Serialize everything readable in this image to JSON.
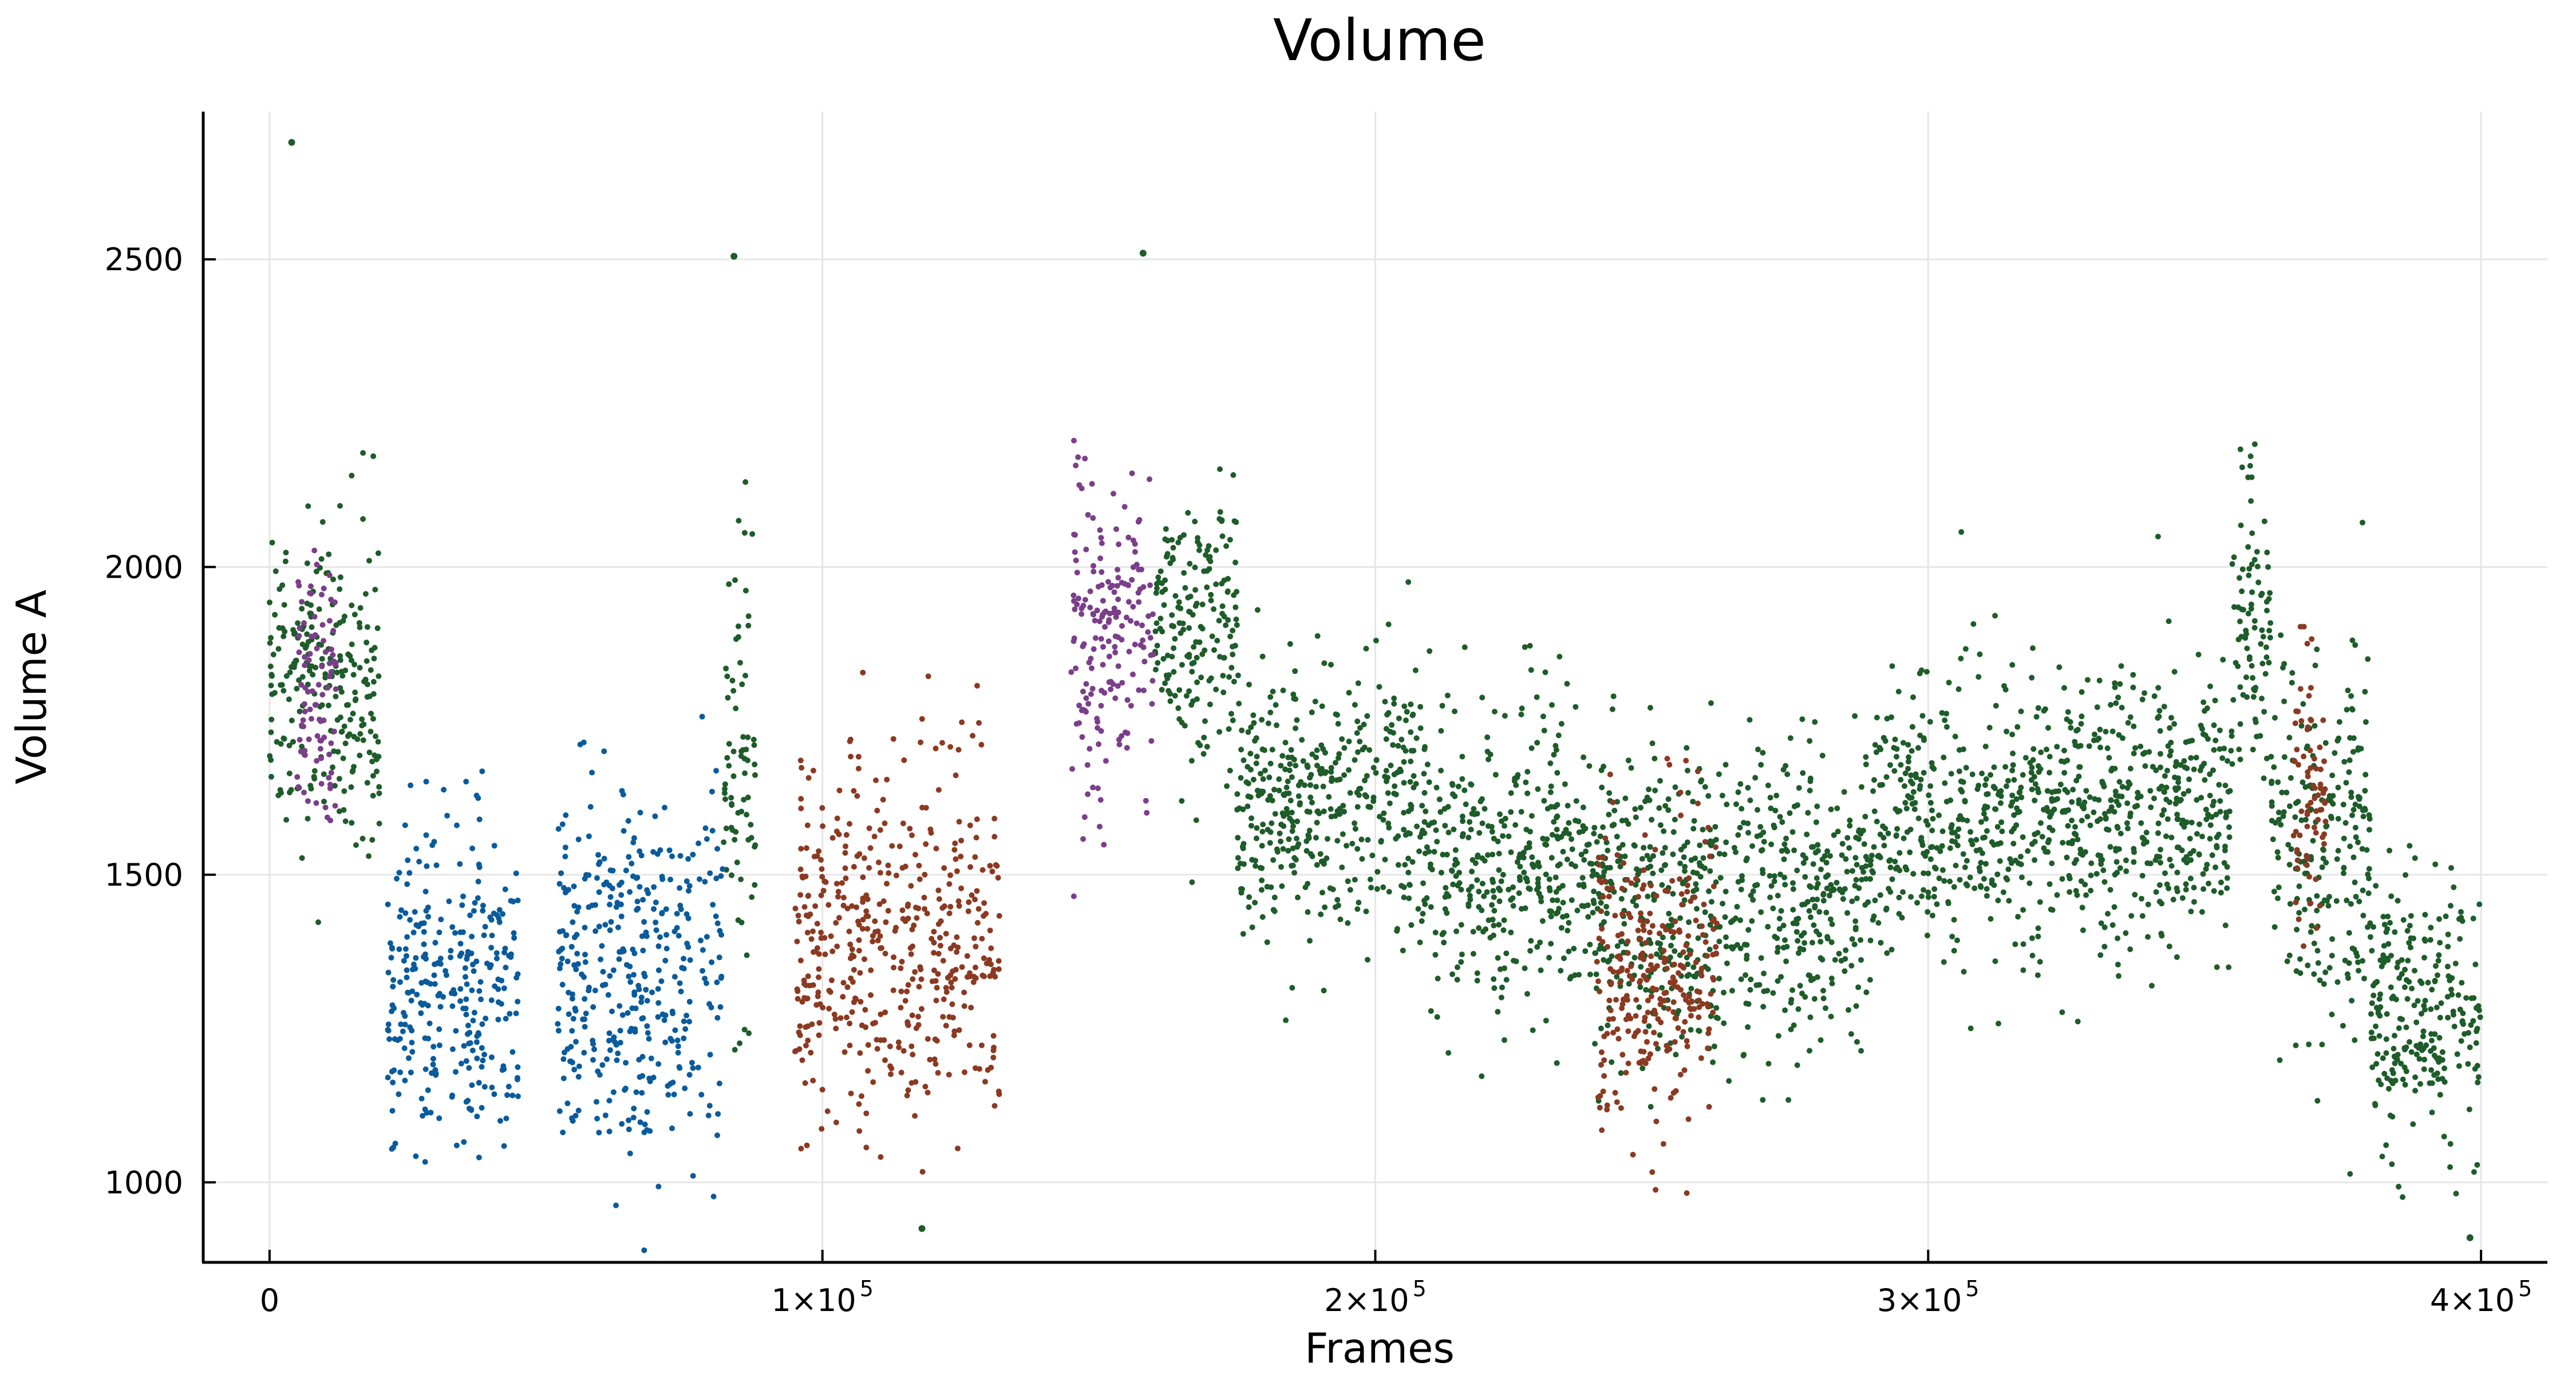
{
  "chart_data": {
    "type": "scatter",
    "title": "Volume",
    "xlabel": "Frames",
    "ylabel": "Volume A",
    "xlim": [
      -12000,
      412000
    ],
    "ylim": [
      870,
      2740
    ],
    "grid": true,
    "legend": "none",
    "x_ticks": [
      {
        "value": 0,
        "label": "0",
        "exp": ""
      },
      {
        "value": 100000,
        "label": "1×10",
        "exp": "5"
      },
      {
        "value": 200000,
        "label": "2×10",
        "exp": "5"
      },
      {
        "value": 300000,
        "label": "3×10",
        "exp": "5"
      },
      {
        "value": 400000,
        "label": "4×10",
        "exp": "5"
      }
    ],
    "y_ticks": [
      {
        "value": 1000,
        "label": "1000"
      },
      {
        "value": 1500,
        "label": "1500"
      },
      {
        "value": 2000,
        "label": "2000"
      },
      {
        "value": 2500,
        "label": "2500"
      }
    ],
    "series": [
      {
        "color": "#1e5c2a",
        "segments": [
          {
            "x": [
              0,
              20000
            ],
            "mean": 1820,
            "spread": 130
          },
          {
            "x": [
              82000,
              88000
            ],
            "mean": 1680,
            "spread": 180
          },
          {
            "x": [
              160000,
              175000
            ],
            "mean": 1900,
            "spread": 110
          },
          {
            "x": [
              175000,
              210000
            ],
            "mean": 1620,
            "spread": 110
          },
          {
            "x": [
              210000,
              235000
            ],
            "mean": 1520,
            "spread": 120
          },
          {
            "x": [
              235000,
              290000
            ],
            "mean": 1460,
            "spread": 120
          },
          {
            "x": [
              290000,
              355000
            ],
            "mean": 1600,
            "spread": 110
          },
          {
            "x": [
              355000,
              362000
            ],
            "mean": 1900,
            "spread": 130
          },
          {
            "x": [
              362000,
              380000
            ],
            "mean": 1550,
            "spread": 150
          },
          {
            "x": [
              380000,
              400000
            ],
            "mean": 1280,
            "spread": 110
          }
        ]
      },
      {
        "color": "#0a5b9c",
        "segments": [
          {
            "x": [
              21000,
              45000
            ],
            "mean": 1320,
            "spread": 130
          },
          {
            "x": [
              52000,
              82000
            ],
            "mean": 1340,
            "spread": 140
          }
        ]
      },
      {
        "color": "#8b3a22",
        "segments": [
          {
            "x": [
              95000,
              132000
            ],
            "mean": 1390,
            "spread": 140
          },
          {
            "x": [
              240000,
              262000
            ],
            "mean": 1340,
            "spread": 120
          },
          {
            "x": [
              366000,
              372000
            ],
            "mean": 1620,
            "spread": 120
          }
        ]
      },
      {
        "color": "#7b3f8a",
        "segments": [
          {
            "x": [
              145000,
              160000
            ],
            "mean": 1880,
            "spread": 150
          },
          {
            "x": [
              5000,
              12000
            ],
            "mean": 1800,
            "spread": 120
          }
        ]
      }
    ],
    "annotations": [
      {
        "x": 4000,
        "y": 2690
      },
      {
        "x": 84000,
        "y": 2505
      },
      {
        "x": 158000,
        "y": 2510
      },
      {
        "x": 118000,
        "y": 925
      },
      {
        "x": 398000,
        "y": 910
      }
    ]
  }
}
